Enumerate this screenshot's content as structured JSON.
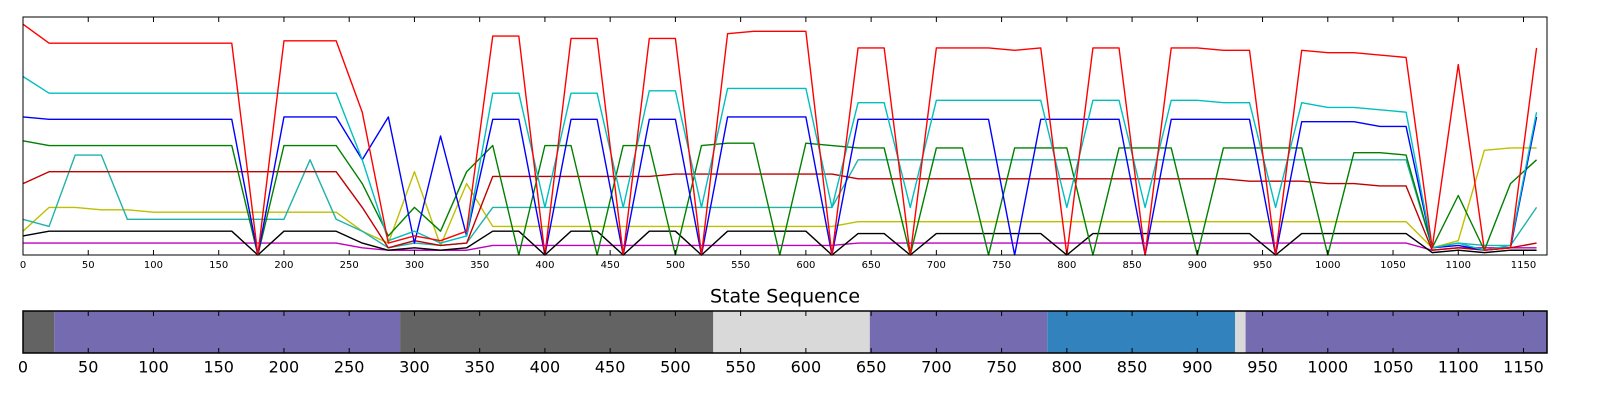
{
  "chart_data": [
    {
      "type": "line",
      "xlim": [
        0,
        1168
      ],
      "xticks": [
        0,
        50,
        100,
        150,
        200,
        250,
        300,
        350,
        400,
        450,
        500,
        550,
        600,
        650,
        700,
        750,
        800,
        850,
        900,
        950,
        1000,
        1050,
        1100,
        1150
      ],
      "ylim": [
        0,
        100
      ],
      "x": [
        0,
        20,
        40,
        60,
        80,
        100,
        120,
        140,
        160,
        180,
        200,
        220,
        240,
        260,
        280,
        300,
        320,
        340,
        360,
        380,
        400,
        420,
        440,
        460,
        480,
        500,
        520,
        540,
        560,
        580,
        600,
        620,
        640,
        660,
        680,
        700,
        720,
        740,
        760,
        780,
        800,
        820,
        840,
        860,
        880,
        900,
        920,
        940,
        960,
        980,
        1000,
        1020,
        1040,
        1060,
        1080,
        1100,
        1120,
        1140,
        1160
      ],
      "series": [
        {
          "color": "#bf00bf",
          "values": [
            5,
            5,
            5,
            5,
            5,
            5,
            5,
            5,
            5,
            5,
            5,
            5,
            5,
            3,
            2,
            2,
            2,
            2,
            4,
            4,
            4,
            4,
            4,
            4,
            4,
            4,
            4,
            4,
            4,
            4,
            4,
            4,
            5,
            5,
            5,
            5,
            5,
            5,
            5,
            5,
            5,
            5,
            5,
            5,
            5,
            5,
            5,
            5,
            5,
            5,
            5,
            5,
            5,
            5,
            2,
            3,
            3,
            3,
            3
          ]
        },
        {
          "color": "#000000",
          "values": [
            8,
            10,
            10,
            10,
            10,
            10,
            10,
            10,
            10,
            0,
            10,
            10,
            10,
            5,
            2,
            3,
            2,
            3,
            10,
            10,
            0,
            10,
            10,
            0,
            10,
            10,
            0,
            10,
            10,
            10,
            10,
            0,
            9,
            9,
            0,
            9,
            9,
            9,
            9,
            9,
            0,
            9,
            9,
            9,
            9,
            9,
            9,
            9,
            0,
            9,
            9,
            9,
            9,
            9,
            1,
            2,
            1,
            2,
            2
          ]
        },
        {
          "color": "#bfbf00",
          "values": [
            10,
            20,
            20,
            19,
            19,
            18,
            18,
            18,
            18,
            18,
            18,
            18,
            18,
            10,
            5,
            35,
            4,
            30,
            12,
            12,
            12,
            12,
            12,
            12,
            12,
            12,
            12,
            12,
            12,
            12,
            12,
            12,
            14,
            14,
            14,
            14,
            14,
            14,
            14,
            14,
            14,
            14,
            14,
            14,
            14,
            14,
            14,
            14,
            14,
            14,
            14,
            14,
            14,
            14,
            3,
            6,
            44,
            45,
            45
          ]
        },
        {
          "color": "#20b2aa",
          "values": [
            15,
            12,
            42,
            42,
            15,
            15,
            15,
            15,
            15,
            15,
            15,
            40,
            15,
            10,
            3,
            5,
            4,
            5,
            20,
            20,
            20,
            20,
            20,
            20,
            20,
            20,
            20,
            20,
            20,
            20,
            20,
            20,
            40,
            40,
            40,
            40,
            40,
            40,
            40,
            40,
            40,
            40,
            40,
            40,
            40,
            40,
            40,
            40,
            40,
            40,
            40,
            40,
            40,
            40,
            3,
            5,
            4,
            4,
            20
          ]
        },
        {
          "color": "#bf0000",
          "values": [
            30,
            35,
            35,
            35,
            35,
            35,
            35,
            35,
            35,
            35,
            35,
            35,
            35,
            20,
            3,
            6,
            4,
            5,
            33,
            33,
            33,
            33,
            33,
            33,
            33,
            34,
            34,
            34,
            34,
            34,
            34,
            34,
            32,
            32,
            32,
            32,
            32,
            32,
            32,
            32,
            32,
            32,
            32,
            32,
            32,
            32,
            32,
            31,
            31,
            31,
            30,
            30,
            29,
            29,
            2,
            3,
            2,
            3,
            5
          ]
        },
        {
          "color": "#008000",
          "values": [
            48,
            46,
            46,
            46,
            46,
            46,
            46,
            46,
            46,
            0,
            46,
            46,
            46,
            30,
            8,
            20,
            10,
            35,
            46,
            0,
            46,
            46,
            0,
            46,
            46,
            0,
            46,
            47,
            47,
            0,
            47,
            46,
            45,
            45,
            0,
            45,
            45,
            0,
            45,
            45,
            45,
            0,
            45,
            45,
            45,
            0,
            45,
            45,
            45,
            45,
            0,
            43,
            43,
            42,
            3,
            25,
            2,
            30,
            40
          ]
        },
        {
          "color": "#0000ff",
          "values": [
            58,
            57,
            57,
            57,
            57,
            57,
            57,
            57,
            57,
            0,
            58,
            58,
            58,
            40,
            58,
            5,
            50,
            8,
            57,
            57,
            0,
            57,
            57,
            0,
            57,
            57,
            0,
            58,
            58,
            58,
            58,
            0,
            57,
            57,
            57,
            57,
            57,
            57,
            0,
            57,
            57,
            57,
            57,
            0,
            57,
            57,
            57,
            57,
            0,
            56,
            56,
            56,
            54,
            54,
            3,
            4,
            2,
            3,
            58
          ]
        },
        {
          "color": "#00bfbf",
          "values": [
            75,
            68,
            68,
            68,
            68,
            68,
            68,
            68,
            68,
            68,
            68,
            68,
            68,
            40,
            6,
            10,
            5,
            8,
            68,
            68,
            20,
            68,
            68,
            20,
            69,
            69,
            20,
            70,
            70,
            70,
            70,
            20,
            64,
            64,
            20,
            65,
            65,
            65,
            65,
            65,
            20,
            65,
            65,
            20,
            65,
            65,
            64,
            64,
            20,
            64,
            62,
            62,
            61,
            60,
            3,
            5,
            2,
            4,
            60
          ]
        },
        {
          "color": "#ff0000",
          "values": [
            97,
            89,
            89,
            89,
            89,
            89,
            89,
            89,
            89,
            0,
            90,
            90,
            90,
            60,
            5,
            8,
            6,
            10,
            92,
            92,
            0,
            91,
            91,
            0,
            91,
            91,
            0,
            93,
            94,
            94,
            94,
            0,
            87,
            87,
            0,
            87,
            87,
            87,
            86,
            87,
            0,
            87,
            87,
            0,
            87,
            87,
            86,
            86,
            0,
            86,
            85,
            85,
            84,
            83,
            3,
            80,
            2,
            3,
            87
          ]
        }
      ]
    },
    {
      "type": "state_sequence",
      "title": "State Sequence",
      "xlim": [
        0,
        1168
      ],
      "xticks": [
        0,
        50,
        100,
        150,
        200,
        250,
        300,
        350,
        400,
        450,
        500,
        550,
        600,
        650,
        700,
        750,
        800,
        850,
        900,
        950,
        1000,
        1050,
        1100,
        1150
      ],
      "segments": [
        {
          "start": 0,
          "end": 24,
          "color": "#636363"
        },
        {
          "start": 24,
          "end": 289,
          "color": "#756bb1"
        },
        {
          "start": 289,
          "end": 529,
          "color": "#636363"
        },
        {
          "start": 529,
          "end": 649,
          "color": "#d9d9d9"
        },
        {
          "start": 649,
          "end": 785,
          "color": "#756bb1"
        },
        {
          "start": 785,
          "end": 929,
          "color": "#3182bd"
        },
        {
          "start": 929,
          "end": 937,
          "color": "#d9d9d9"
        },
        {
          "start": 937,
          "end": 1168,
          "color": "#756bb1"
        }
      ]
    }
  ]
}
